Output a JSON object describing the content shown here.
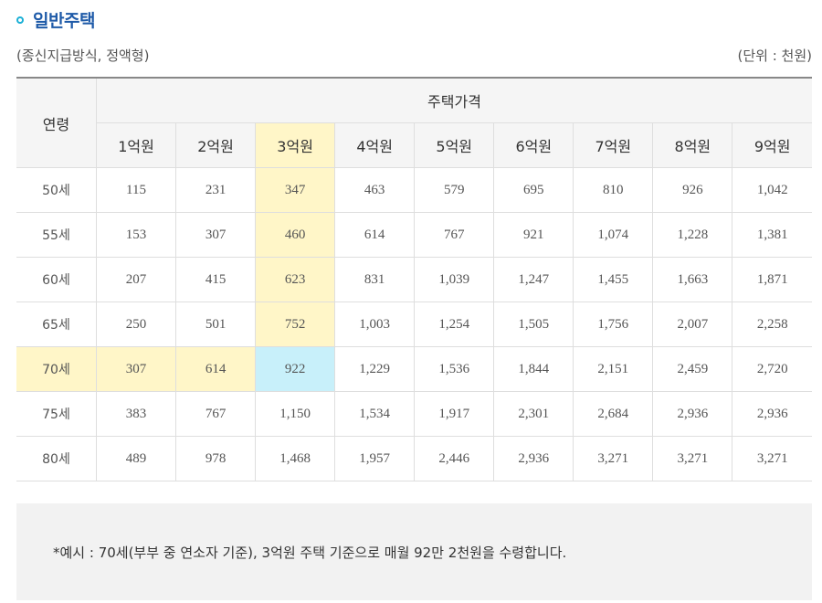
{
  "section": {
    "title": "일반주택",
    "subtitle": "(종신지급방식, 정액형)",
    "unit": "(단위 : 천원)"
  },
  "table": {
    "age_header": "연령",
    "price_header": "주택가격",
    "columns": [
      "1억원",
      "2억원",
      "3억원",
      "4억원",
      "5억원",
      "6억원",
      "7억원",
      "8억원",
      "9억원"
    ],
    "rows": [
      {
        "age": "50세",
        "values": [
          "115",
          "231",
          "347",
          "463",
          "579",
          "695",
          "810",
          "926",
          "1,042"
        ]
      },
      {
        "age": "55세",
        "values": [
          "153",
          "307",
          "460",
          "614",
          "767",
          "921",
          "1,074",
          "1,228",
          "1,381"
        ]
      },
      {
        "age": "60세",
        "values": [
          "207",
          "415",
          "623",
          "831",
          "1,039",
          "1,247",
          "1,455",
          "1,663",
          "1,871"
        ]
      },
      {
        "age": "65세",
        "values": [
          "250",
          "501",
          "752",
          "1,003",
          "1,254",
          "1,505",
          "1,756",
          "2,007",
          "2,258"
        ]
      },
      {
        "age": "70세",
        "values": [
          "307",
          "614",
          "922",
          "1,229",
          "1,536",
          "1,844",
          "2,151",
          "2,459",
          "2,720"
        ]
      },
      {
        "age": "75세",
        "values": [
          "383",
          "767",
          "1,150",
          "1,534",
          "1,917",
          "2,301",
          "2,684",
          "2,936",
          "2,936"
        ]
      },
      {
        "age": "80세",
        "values": [
          "489",
          "978",
          "1,468",
          "1,957",
          "2,446",
          "2,936",
          "3,271",
          "3,271",
          "3,271"
        ]
      }
    ],
    "highlight": {
      "column_index": 2,
      "row_index": 4,
      "highlight_color": "#fff6c8",
      "intersection_color": "#c8f0fa"
    }
  },
  "note": {
    "text": "*예시 : 70세(부부 중 연소자 기준), 3억원 주택 기준으로 매월 92만 2천원을 수령합니다."
  },
  "colors": {
    "title": "#1e5aa8",
    "bullet": "#1bb0d6"
  }
}
